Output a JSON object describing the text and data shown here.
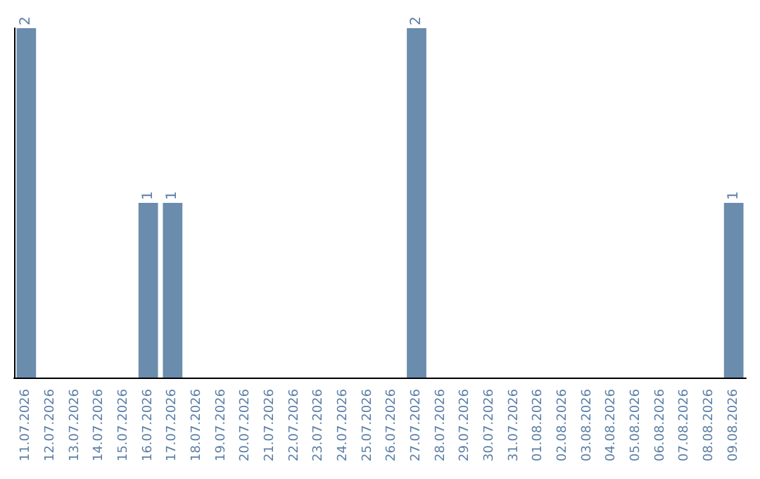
{
  "chart_data": {
    "type": "bar",
    "categories": [
      "11.07.2026",
      "12.07.2026",
      "13.07.2026",
      "14.07.2026",
      "15.07.2026",
      "16.07.2026",
      "17.07.2026",
      "18.07.2026",
      "19.07.2026",
      "20.07.2026",
      "21.07.2026",
      "22.07.2026",
      "23.07.2026",
      "24.07.2026",
      "25.07.2026",
      "26.07.2026",
      "27.07.2026",
      "28.07.2026",
      "29.07.2026",
      "30.07.2026",
      "31.07.2026",
      "01.08.2026",
      "02.08.2026",
      "03.08.2026",
      "04.08.2026",
      "05.08.2026",
      "06.08.2026",
      "07.08.2026",
      "08.08.2026",
      "09.08.2026"
    ],
    "values": [
      2,
      0,
      0,
      0,
      0,
      1,
      1,
      0,
      0,
      0,
      0,
      0,
      0,
      0,
      0,
      0,
      2,
      0,
      0,
      0,
      0,
      0,
      0,
      0,
      0,
      0,
      0,
      0,
      0,
      1
    ],
    "value_labels": [
      "2",
      null,
      null,
      null,
      null,
      "1",
      "1",
      null,
      null,
      null,
      null,
      null,
      null,
      null,
      null,
      null,
      "2",
      null,
      null,
      null,
      null,
      null,
      null,
      null,
      null,
      null,
      null,
      null,
      null,
      "1"
    ],
    "color": "#6a8cad",
    "ylim": [
      0,
      2
    ],
    "tick_labels": "x"
  }
}
